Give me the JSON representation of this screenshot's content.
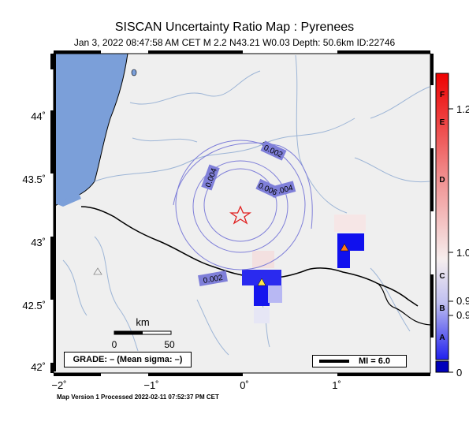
{
  "header": {
    "title": "SISCAN Uncertainty Ratio Map : Pyrenees",
    "subtitle": "Jan  3, 2022 08:47:58 AM CET   M 2.2   N43.21 W0.03   Depth: 50.6km   ID:22746"
  },
  "axes": {
    "lat_labels": [
      "44˚",
      "43.5˚",
      "43˚",
      "42.5˚",
      "42˚"
    ],
    "lon_labels": [
      "−2˚",
      "−1˚",
      "0˚",
      "1˚"
    ]
  },
  "contours": {
    "labels": [
      "0.002",
      "0.004",
      "0.004",
      "0.006",
      "0.002"
    ]
  },
  "scalebar": {
    "unit": "km",
    "tick_start": "0",
    "tick_end": "50"
  },
  "grade_box": {
    "text": "GRADE: – (Mean sigma: –)"
  },
  "mi_box": {
    "text": "MI = 6.0"
  },
  "colorbar": {
    "letters": [
      "F",
      "E",
      "D",
      "C",
      "B",
      "A"
    ],
    "values": [
      "1.2",
      "1.0",
      "0.9",
      "0.9",
      "0"
    ]
  },
  "footer": {
    "text": "Map Version 1 Processed 2022-02-11 07:52:37 PM CET"
  },
  "colors": {
    "land": "#efefef",
    "sea": "#7b9fd9",
    "contour": "#7f7fd9",
    "river": "#9db5d6",
    "epicenter": "#e02020"
  }
}
